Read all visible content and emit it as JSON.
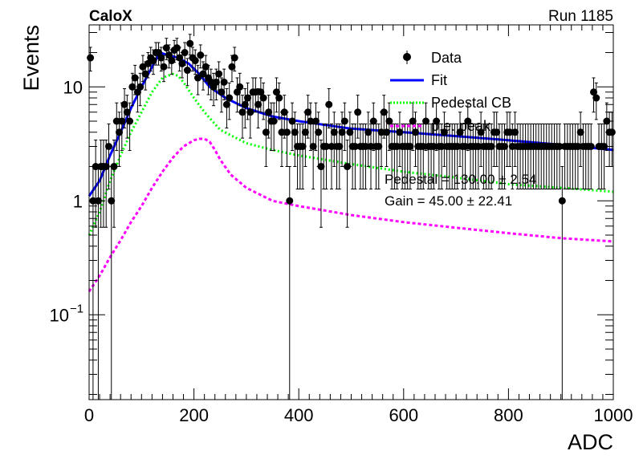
{
  "header": {
    "experiment": "CaloX",
    "run": "Run 1185"
  },
  "chart_data": {
    "type": "scatter",
    "xlabel": "ADC",
    "ylabel": "Events",
    "xlim": [
      0,
      1000
    ],
    "ylim": [
      0.018,
      35
    ],
    "yscale": "log",
    "x_ticks": [
      "0",
      "200",
      "400",
      "600",
      "800",
      "1000"
    ],
    "y_ticks": [
      {
        "value": 10,
        "label": "10"
      },
      {
        "value": 1,
        "label": "1"
      },
      {
        "value": 0.1,
        "base": "10",
        "exp": "−1"
      }
    ],
    "legend_position": "top-right",
    "legend": [
      "Data",
      "Fit",
      "Pedestal CB",
      "p.e. peak"
    ],
    "annotations": [
      "Pedestal = 130.00 ± 2.54",
      "Gain = 45.00 ± 22.41"
    ],
    "colors": {
      "data": "#000000",
      "fit": "#0000ff",
      "pedestal": "#00ff00",
      "pe_peak": "#ff00ff"
    },
    "data": {
      "x": [
        0,
        5,
        10,
        15,
        20,
        25,
        30,
        35,
        40,
        45,
        50,
        55,
        60,
        65,
        70,
        75,
        80,
        85,
        90,
        95,
        100,
        105,
        110,
        115,
        120,
        125,
        130,
        135,
        140,
        145,
        150,
        155,
        160,
        165,
        170,
        175,
        180,
        185,
        190,
        195,
        200,
        205,
        210,
        215,
        220,
        225,
        230,
        235,
        240,
        245,
        250,
        255,
        260,
        265,
        270,
        275,
        280,
        285,
        290,
        295,
        300,
        305,
        310,
        315,
        320,
        325,
        330,
        335,
        340,
        345,
        350,
        355,
        360,
        365,
        370,
        375,
        380,
        385,
        390,
        395,
        400,
        405,
        410,
        415,
        420,
        425,
        430,
        435,
        440,
        445,
        450,
        455,
        460,
        465,
        470,
        475,
        480,
        485,
        490,
        495,
        500,
        505,
        510,
        515,
        520,
        525,
        530,
        535,
        540,
        545,
        550,
        555,
        560,
        565,
        570,
        575,
        580,
        585,
        590,
        595,
        600,
        605,
        610,
        615,
        620,
        625,
        630,
        635,
        640,
        645,
        650,
        655,
        660,
        665,
        670,
        675,
        680,
        685,
        690,
        695,
        700,
        705,
        710,
        715,
        720,
        725,
        730,
        735,
        740,
        745,
        750,
        755,
        760,
        765,
        770,
        775,
        780,
        785,
        790,
        795,
        800,
        805,
        810,
        815,
        820,
        825,
        830,
        835,
        840,
        845,
        850,
        855,
        860,
        865,
        870,
        875,
        880,
        885,
        890,
        895,
        900,
        905,
        910,
        915,
        920,
        925,
        930,
        935,
        940,
        945,
        950,
        955,
        960,
        965,
        970,
        975,
        980,
        985,
        990,
        995
      ],
      "y": [
        18,
        1,
        2,
        1,
        2,
        2,
        2,
        3,
        1,
        2,
        5,
        4,
        5,
        7,
        6,
        5,
        10,
        12,
        9,
        10,
        15,
        13,
        16,
        18,
        17,
        20,
        20,
        18,
        15,
        22,
        19,
        17,
        21,
        22,
        18,
        16,
        20,
        14,
        24,
        18,
        17,
        12,
        19,
        13,
        15,
        12,
        11,
        10,
        11,
        13,
        9,
        11,
        7,
        8,
        15,
        18,
        9,
        10,
        6,
        7,
        8,
        6,
        9,
        9,
        7,
        9,
        8,
        4,
        6,
        5,
        5,
        9,
        8,
        4,
        6,
        4,
        1,
        5,
        4,
        3,
        3,
        3,
        4,
        6,
        5,
        3,
        5,
        4,
        2,
        3,
        3,
        7,
        3,
        4,
        3,
        3,
        4,
        5,
        2,
        4,
        3,
        3,
        6,
        3,
        3,
        3,
        4,
        3,
        5,
        3,
        3,
        4,
        6,
        4,
        5,
        3,
        3,
        3,
        4,
        3,
        3,
        3,
        3,
        5,
        4,
        3,
        3,
        3,
        5,
        3,
        3,
        3,
        5,
        3,
        3,
        4,
        3,
        3,
        3,
        3,
        3,
        4,
        3,
        3,
        5,
        3,
        3,
        3,
        3,
        4,
        3,
        3,
        3,
        3,
        4,
        4,
        3,
        3,
        3,
        4,
        4,
        3,
        4,
        3,
        3,
        3,
        3,
        3,
        3,
        3,
        3,
        3,
        3,
        3,
        3,
        3,
        3,
        3,
        3,
        3,
        1,
        3,
        3,
        3,
        3,
        3,
        3,
        4,
        3,
        3,
        3,
        3,
        9,
        8,
        3,
        3,
        3,
        5,
        4,
        4
      ]
    },
    "series": [
      {
        "name": "Fit",
        "x": [
          0,
          20,
          40,
          60,
          80,
          100,
          120,
          135,
          150,
          170,
          190,
          210,
          230,
          260,
          300,
          350,
          400,
          500,
          600,
          700,
          800,
          900,
          1000
        ],
        "y": [
          1.1,
          1.5,
          2.5,
          4,
          6.5,
          10,
          15,
          20,
          19,
          18,
          16,
          13,
          10,
          8,
          6.5,
          5.5,
          5,
          4.3,
          4,
          3.7,
          3.4,
          3.1,
          2.8
        ]
      },
      {
        "name": "Pedestal CB",
        "x": [
          0,
          20,
          40,
          60,
          80,
          100,
          120,
          140,
          160,
          170,
          180,
          200,
          220,
          250,
          300,
          350,
          400,
          500,
          600,
          700,
          800,
          900,
          1000
        ],
        "y": [
          0.5,
          0.8,
          1.5,
          2.5,
          4,
          6,
          9,
          12,
          13,
          12.5,
          11,
          8,
          6,
          4.2,
          3.2,
          2.8,
          2.5,
          2.1,
          1.8,
          1.6,
          1.4,
          1.3,
          1.2
        ]
      },
      {
        "name": "p.e. peak",
        "x": [
          0,
          20,
          40,
          60,
          80,
          100,
          120,
          140,
          160,
          180,
          200,
          210,
          220,
          230,
          240,
          250,
          270,
          300,
          350,
          400,
          500,
          600,
          700,
          800,
          900,
          1000
        ],
        "y": [
          0.16,
          0.22,
          0.32,
          0.45,
          0.65,
          0.9,
          1.3,
          1.8,
          2.4,
          3,
          3.4,
          3.5,
          3.5,
          3.3,
          2.8,
          2.3,
          1.7,
          1.3,
          1,
          0.9,
          0.75,
          0.65,
          0.58,
          0.52,
          0.47,
          0.44
        ]
      }
    ]
  }
}
